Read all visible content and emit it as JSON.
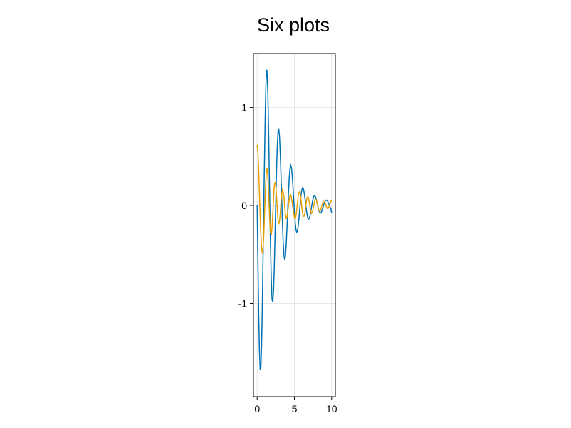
{
  "chart_data": {
    "type": "line",
    "title": "Six plots",
    "xlabel": "",
    "ylabel": "",
    "xlim": [
      -0.5,
      10.5
    ],
    "ylim": [
      -1.95,
      1.55
    ],
    "xticks": [
      0,
      5,
      10
    ],
    "xtick_labels": [
      "0",
      "5",
      "10"
    ],
    "yticks": [
      -1,
      0,
      1
    ],
    "ytick_labels": [
      "-1",
      "0",
      "1"
    ],
    "grid": true,
    "legend": "none",
    "series": [
      {
        "color": "#0072b2",
        "x": [
          0,
          0.1,
          0.2,
          0.3,
          0.4,
          0.5,
          0.6,
          0.7,
          0.8,
          0.9,
          1.0,
          1.1,
          1.2,
          1.3,
          1.4,
          1.5,
          1.6,
          1.7,
          1.8,
          1.9,
          2.0,
          2.1,
          2.2,
          2.3,
          2.4,
          2.5,
          2.6,
          2.7,
          2.8,
          2.9,
          3.0,
          3.1,
          3.2,
          3.3,
          3.4,
          3.5,
          3.6,
          3.7,
          3.8,
          3.9,
          4.0,
          4.1,
          4.2,
          4.3,
          4.4,
          4.5,
          4.6,
          4.7,
          4.8,
          4.9,
          5.0,
          5.1,
          5.2,
          5.3,
          5.4,
          5.5,
          5.6,
          5.7,
          5.8,
          5.9,
          6.0,
          6.1,
          6.2,
          6.3,
          6.4,
          6.5,
          6.6,
          6.7,
          6.8,
          6.9,
          7.0,
          7.1,
          7.2,
          7.3,
          7.4,
          7.5,
          7.6,
          7.7,
          7.8,
          7.9,
          8.0,
          8.1,
          8.2,
          8.3,
          8.4,
          8.5,
          8.6,
          8.7,
          8.8,
          8.9,
          9.0,
          9.1,
          9.2,
          9.3,
          9.4,
          9.5,
          9.6,
          9.7,
          9.8,
          9.9,
          10.0
        ],
        "y": [
          0.0,
          -0.556,
          -1.074,
          -1.468,
          -1.674,
          -1.654,
          -1.413,
          -0.994,
          -0.471,
          0.069,
          0.545,
          0.992,
          1.297,
          1.385,
          1.244,
          0.91,
          0.463,
          -0.01,
          -0.441,
          -0.772,
          -0.96,
          -0.988,
          -0.867,
          -0.624,
          -0.304,
          0.039,
          0.357,
          0.603,
          0.749,
          0.781,
          0.703,
          0.534,
          0.304,
          0.049,
          -0.193,
          -0.388,
          -0.512,
          -0.553,
          -0.511,
          -0.398,
          -0.235,
          -0.05,
          0.128,
          0.274,
          0.372,
          0.409,
          0.386,
          0.311,
          0.199,
          0.068,
          -0.06,
          -0.167,
          -0.24,
          -0.272,
          -0.262,
          -0.214,
          -0.139,
          -0.05,
          0.038,
          0.111,
          0.16,
          0.181,
          0.172,
          0.136,
          0.082,
          0.018,
          -0.043,
          -0.093,
          -0.126,
          -0.138,
          -0.13,
          -0.103,
          -0.062,
          -0.014,
          0.031,
          0.068,
          0.092,
          0.1,
          0.093,
          0.072,
          0.042,
          0.007,
          -0.027,
          -0.054,
          -0.07,
          -0.075,
          -0.069,
          -0.052,
          -0.029,
          -0.003,
          0.021,
          0.04,
          0.052,
          0.055,
          0.05,
          0.038,
          0.02,
          0.001,
          -0.017,
          -0.03,
          -0.08
        ]
      },
      {
        "color": "#e69f00",
        "x": [
          0,
          0.1,
          0.2,
          0.3,
          0.4,
          0.5,
          0.6,
          0.7,
          0.8,
          0.9,
          1.0,
          1.1,
          1.2,
          1.3,
          1.4,
          1.5,
          1.6,
          1.7,
          1.8,
          1.9,
          2.0,
          2.1,
          2.2,
          2.3,
          2.4,
          2.5,
          2.6,
          2.7,
          2.8,
          2.9,
          3.0,
          3.1,
          3.2,
          3.3,
          3.4,
          3.5,
          3.6,
          3.7,
          3.8,
          3.9,
          4.0,
          4.1,
          4.2,
          4.3,
          4.4,
          4.5,
          4.6,
          4.7,
          4.8,
          4.9,
          5.0,
          5.1,
          5.2,
          5.3,
          5.4,
          5.5,
          5.6,
          5.7,
          5.8,
          5.9,
          6.0,
          6.1,
          6.2,
          6.3,
          6.4,
          6.5,
          6.6,
          6.7,
          6.8,
          6.9,
          7.0,
          7.1,
          7.2,
          7.3,
          7.4,
          7.5,
          7.6,
          7.7,
          7.8,
          7.9,
          8.0,
          8.1,
          8.2,
          8.3,
          8.4,
          8.5,
          8.6,
          8.7,
          8.8,
          8.9,
          9.0,
          9.1,
          9.2,
          9.3,
          9.4,
          9.5,
          9.6,
          9.7,
          9.8,
          9.9,
          10.0
        ],
        "y": [
          0.62,
          0.545,
          0.37,
          0.14,
          -0.1,
          -0.3,
          -0.44,
          -0.49,
          -0.43,
          -0.28,
          -0.06,
          0.15,
          0.31,
          0.38,
          0.34,
          0.2,
          0.01,
          -0.17,
          -0.28,
          -0.3,
          -0.22,
          -0.08,
          0.08,
          0.2,
          0.24,
          0.2,
          0.09,
          -0.04,
          -0.15,
          -0.19,
          -0.16,
          -0.08,
          0.03,
          0.12,
          0.16,
          0.14,
          0.08,
          -0.01,
          -0.09,
          -0.13,
          -0.12,
          -0.07,
          0.0,
          0.06,
          0.1,
          0.11,
          0.08,
          0.03,
          -0.03,
          -0.08,
          -0.12,
          -0.14,
          -0.11,
          -0.05,
          0.02,
          0.09,
          0.13,
          0.14,
          0.11,
          0.05,
          -0.02,
          -0.08,
          -0.11,
          -0.11,
          -0.08,
          -0.02,
          0.04,
          0.08,
          0.09,
          0.07,
          0.03,
          -0.02,
          -0.06,
          -0.08,
          -0.07,
          -0.04,
          0.0,
          0.04,
          0.06,
          0.06,
          0.04,
          0.01,
          -0.03,
          -0.05,
          -0.06,
          -0.05,
          -0.03,
          0.0,
          0.03,
          0.04,
          0.04,
          0.03,
          0.01,
          -0.01,
          -0.03,
          -0.03,
          -0.02,
          0.0,
          0.02,
          0.04,
          0.06
        ]
      }
    ]
  }
}
